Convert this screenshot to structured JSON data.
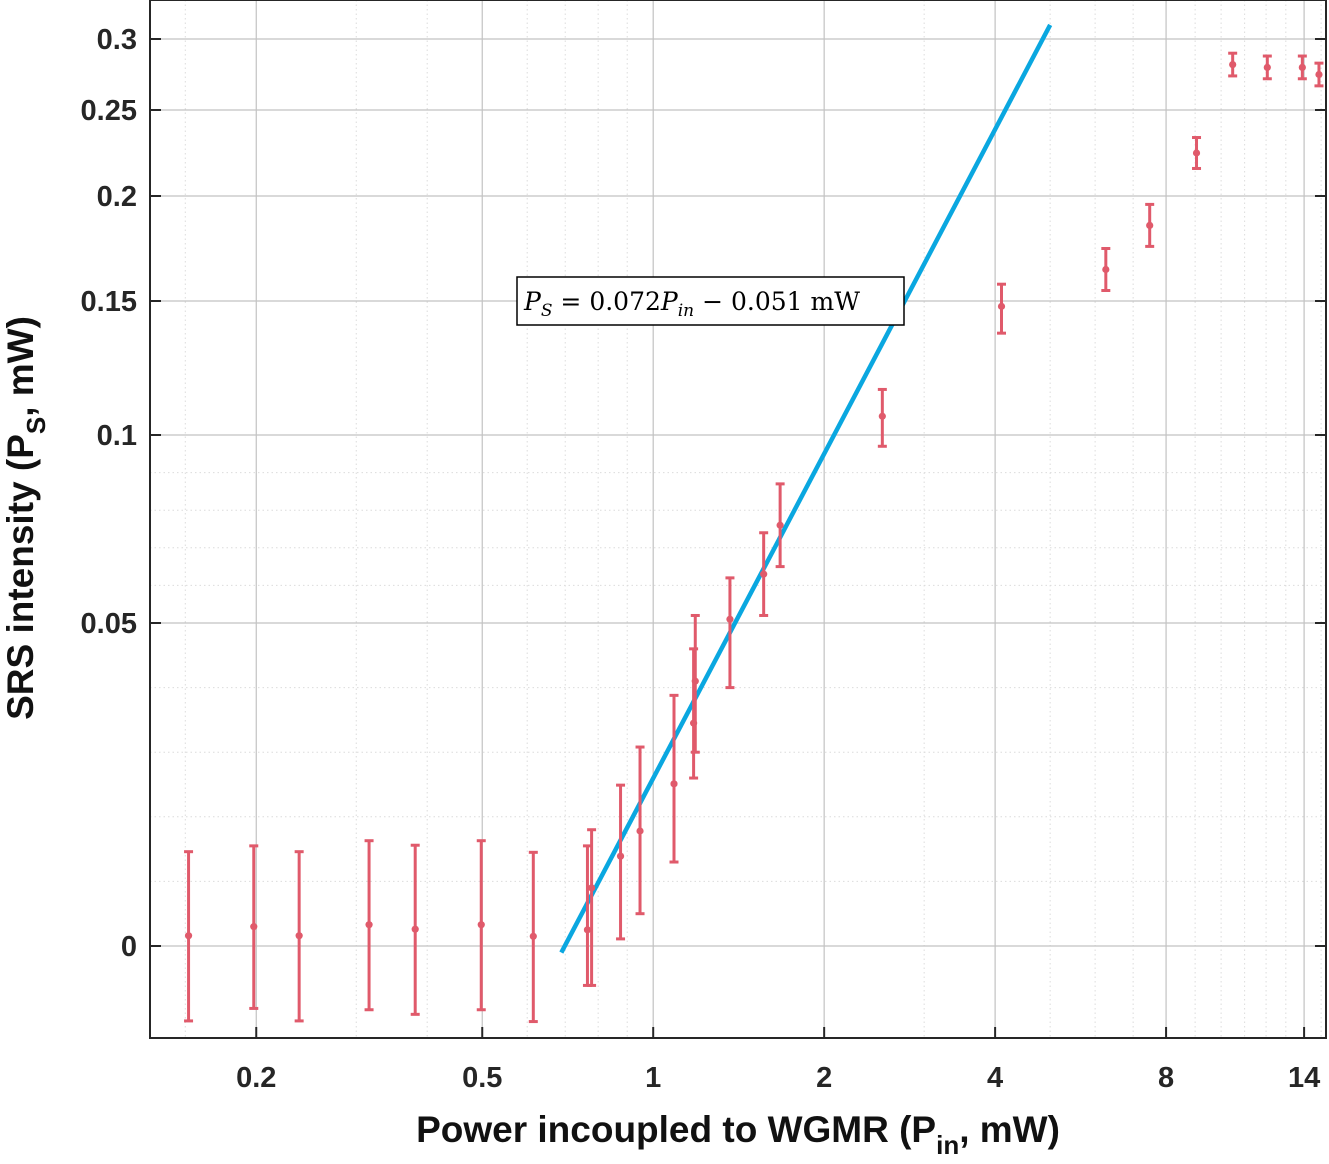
{
  "chart_data": {
    "type": "scatter",
    "title": "",
    "xlabel": {
      "prefix": "Power incoupled to WGMR (P",
      "sub": "in",
      "suffix": ", mW)"
    },
    "ylabel": {
      "prefix": "SRS intensity (P",
      "sub": "S",
      "suffix": ", mW)"
    },
    "xscale": "log",
    "yscale": "custom (tick positions as printed)",
    "xlim": [
      0.13,
      15.3
    ],
    "ylim": [
      -0.014,
      0.325
    ],
    "x_ticks": [
      0.2,
      0.5,
      1,
      2,
      4,
      8,
      14
    ],
    "x_tick_labels": [
      "0.2",
      "0.5",
      "1",
      "2",
      "4",
      "8",
      "14"
    ],
    "y_ticks": [
      0,
      0.05,
      0.1,
      0.15,
      0.2,
      0.25,
      0.3
    ],
    "y_tick_labels": [
      "0",
      "0.05",
      "0.1",
      "0.15",
      "0.2",
      "0.25",
      "0.3"
    ],
    "grid": true,
    "minor_grid": true,
    "legend": "none",
    "colors": {
      "points": "#e05a6b",
      "fit": "#0aa7e0",
      "grid_major": "#c2c2c2",
      "grid_minor": "#dcdcdc",
      "axes": "#262626"
    },
    "series": [
      {
        "kind": "errorbar",
        "x": [
          0.152,
          0.198,
          0.238,
          0.316,
          0.381,
          0.498,
          0.615,
          0.766,
          0.779,
          0.876,
          0.948,
          1.088,
          1.178,
          1.186,
          1.365,
          1.565,
          1.673,
          2.532,
          4.105,
          6.266,
          7.486,
          9.051,
          10.48,
          12.06,
          13.9,
          14.87
        ],
        "y": [
          0.0016,
          0.003,
          0.0016,
          0.0033,
          0.0026,
          0.0033,
          0.0015,
          0.0025,
          0.009,
          0.0139,
          0.0178,
          0.0251,
          0.0345,
          0.041,
          0.051,
          0.063,
          0.076,
          0.107,
          0.148,
          0.165,
          0.186,
          0.225,
          0.282,
          0.28,
          0.28,
          0.275
        ],
        "lower": [
          -0.0114,
          -0.0095,
          -0.0114,
          -0.0097,
          -0.0104,
          -0.0097,
          -0.0115,
          -0.006,
          -0.006,
          0.0011,
          0.005,
          0.013,
          0.026,
          0.03,
          0.04,
          0.052,
          0.065,
          0.097,
          0.138,
          0.155,
          0.176,
          0.216,
          0.274,
          0.272,
          0.272,
          0.267
        ],
        "upper": [
          0.0146,
          0.0155,
          0.0146,
          0.0163,
          0.0156,
          0.0163,
          0.0145,
          0.0155,
          0.018,
          0.0249,
          0.0308,
          0.0388,
          0.046,
          0.052,
          0.062,
          0.074,
          0.087,
          0.117,
          0.158,
          0.175,
          0.196,
          0.234,
          0.29,
          0.288,
          0.288,
          0.283
        ]
      },
      {
        "kind": "line",
        "x": [
          0.689,
          5.0
        ],
        "y": [
          -0.001,
          0.309
        ]
      }
    ],
    "annotation": {
      "text": "P_S = 0.072P_in − 0.051 mW",
      "parts": [
        "P",
        "S",
        " = 0.072",
        "P",
        "in",
        " − 0.051 mW"
      ]
    }
  }
}
